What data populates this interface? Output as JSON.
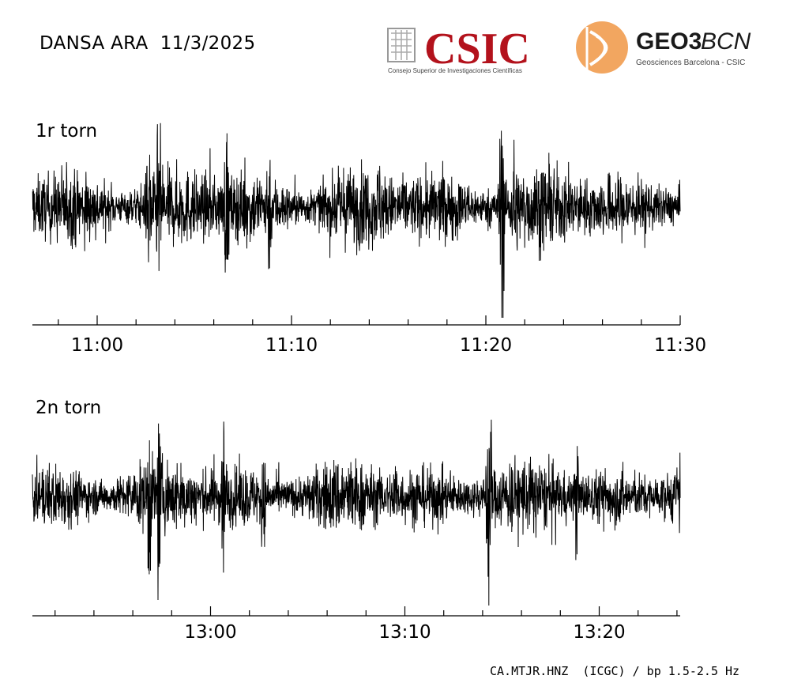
{
  "header": {
    "title": "DANSA ARA  11/3/2025"
  },
  "logos": {
    "csic_name": "CSIC",
    "csic_subtitle": "Consejo Superior de Investigaciones Científicas",
    "geo_name_bold": "GEO3",
    "geo_name_light": "BCN",
    "geo_subtitle": "Geosciences Barcelona - CSIC",
    "csic_color": "#b3121c",
    "geo_accent_color": "#f2a660"
  },
  "footer": {
    "caption": "CA.MTJR.HNZ  (ICGC) / bp 1.5-2.5 Hz"
  },
  "chart_data": [
    {
      "type": "line",
      "label": "1r torn",
      "x_range_minutes": [
        "10:56:40",
        "11:30:00"
      ],
      "tick_labels": [
        "11:00",
        "11:10",
        "11:20",
        "11:30"
      ],
      "minor_tick_interval_min": 2,
      "background_amplitude": 0.32,
      "bursts": [
        {
          "time": "11:02:40",
          "amplitude": 0.72
        },
        {
          "time": "11:03:10",
          "amplitude": 0.75
        },
        {
          "time": "11:06:40",
          "amplitude": 0.68
        },
        {
          "time": "11:08:50",
          "amplitude": 0.6
        },
        {
          "time": "11:14:30",
          "amplitude": 0.45
        },
        {
          "time": "11:20:50",
          "amplitude": 1.0
        },
        {
          "time": "11:21:30",
          "amplitude": 0.6
        }
      ],
      "color": "#000000"
    },
    {
      "type": "line",
      "label": "2n torn",
      "x_range_minutes": [
        "12:50:50",
        "13:24:10"
      ],
      "tick_labels": [
        "13:00",
        "13:10",
        "13:20"
      ],
      "minor_tick_interval_min": 2,
      "background_amplitude": 0.3,
      "bursts": [
        {
          "time": "12:56:50",
          "amplitude": 0.82
        },
        {
          "time": "12:57:20",
          "amplitude": 0.65
        },
        {
          "time": "13:00:40",
          "amplitude": 0.78
        },
        {
          "time": "13:02:40",
          "amplitude": 0.55
        },
        {
          "time": "13:09:30",
          "amplitude": 0.4
        },
        {
          "time": "13:14:20",
          "amplitude": 1.0
        },
        {
          "time": "13:18:50",
          "amplitude": 0.45
        }
      ],
      "color": "#000000"
    }
  ]
}
